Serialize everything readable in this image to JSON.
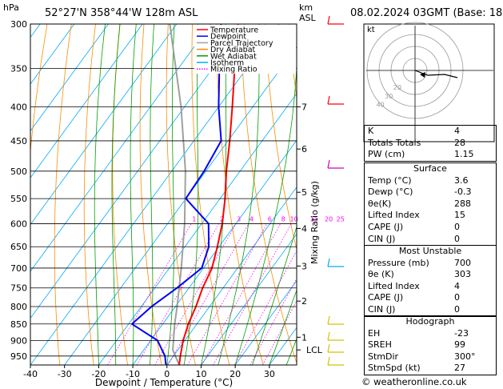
{
  "header": {
    "p_unit": "hPa",
    "location": "52°27'N  358°44'W  128m  ASL",
    "km_unit": "km",
    "asl": "ASL",
    "datetime": "08.02.2024  03GMT  (Base: 18)"
  },
  "chart_data": {
    "type": "skew-t",
    "xlabel": "Dewpoint / Temperature (°C)",
    "ylabel": "hPa",
    "mixing_label": "Mixing Ratio (g/kg)",
    "xlim": [
      -40,
      38
    ],
    "plim": [
      300,
      980
    ],
    "x_ticks": [
      -40,
      -30,
      -20,
      -10,
      0,
      10,
      20,
      30
    ],
    "p_ticks": [
      300,
      350,
      400,
      450,
      500,
      550,
      600,
      650,
      700,
      750,
      800,
      850,
      900,
      950
    ],
    "km_ticks": [
      {
        "label": "7",
        "p": 400
      },
      {
        "label": "6",
        "p": 463
      },
      {
        "label": "5",
        "p": 538
      },
      {
        "label": "4",
        "p": 610
      },
      {
        "label": "3",
        "p": 695
      },
      {
        "label": "2",
        "p": 785
      },
      {
        "label": "1",
        "p": 890
      },
      {
        "label": "LCL",
        "p": 930
      }
    ],
    "mixing_ratios": [
      "1",
      "2",
      "3",
      "4",
      "6",
      "8",
      "10",
      "15",
      "20",
      "25"
    ],
    "legend": [
      {
        "name": "Temperature",
        "color": "#ff0000"
      },
      {
        "name": "Dewpoint",
        "color": "#0000ff"
      },
      {
        "name": "Parcel Trajectory",
        "color": "#a0a0a0"
      },
      {
        "name": "Dry Adiabat",
        "color": "#ff8c00"
      },
      {
        "name": "Wet Adiabat",
        "color": "#00a000"
      },
      {
        "name": "Isotherm",
        "color": "#00aaff"
      },
      {
        "name": "Mixing Ratio",
        "color": "#ff00ff"
      }
    ],
    "temperature": [
      {
        "p": 980,
        "t": 3.6
      },
      {
        "p": 950,
        "t": 2.0
      },
      {
        "p": 900,
        "t": -0.5
      },
      {
        "p": 850,
        "t": -2.5
      },
      {
        "p": 800,
        "t": -4.0
      },
      {
        "p": 750,
        "t": -6.0
      },
      {
        "p": 700,
        "t": -7.5
      },
      {
        "p": 650,
        "t": -10.5
      },
      {
        "p": 600,
        "t": -14.0
      },
      {
        "p": 550,
        "t": -18.5
      },
      {
        "p": 500,
        "t": -24.0
      },
      {
        "p": 450,
        "t": -29.5
      },
      {
        "p": 400,
        "t": -36.0
      },
      {
        "p": 350,
        "t": -43.5
      },
      {
        "p": 300,
        "t": -52.0
      }
    ],
    "dewpoint": [
      {
        "p": 980,
        "t": -0.3
      },
      {
        "p": 950,
        "t": -2.5
      },
      {
        "p": 900,
        "t": -8.0
      },
      {
        "p": 850,
        "t": -19.0
      },
      {
        "p": 800,
        "t": -17.0
      },
      {
        "p": 750,
        "t": -13.5
      },
      {
        "p": 700,
        "t": -10.5
      },
      {
        "p": 650,
        "t": -13.0
      },
      {
        "p": 600,
        "t": -18.0
      },
      {
        "p": 550,
        "t": -30.0
      },
      {
        "p": 500,
        "t": -30.5
      },
      {
        "p": 450,
        "t": -32.0
      },
      {
        "p": 400,
        "t": -40.0
      },
      {
        "p": 350,
        "t": -48.0
      },
      {
        "p": 300,
        "t": -57.0
      }
    ],
    "parcel": [
      {
        "p": 980,
        "t": 3.6
      },
      {
        "p": 930,
        "t": -1.5
      },
      {
        "p": 850,
        "t": -6.5
      },
      {
        "p": 800,
        "t": -9.5
      },
      {
        "p": 700,
        "t": -16.5
      },
      {
        "p": 600,
        "t": -25.0
      },
      {
        "p": 500,
        "t": -36.0
      },
      {
        "p": 400,
        "t": -51.0
      },
      {
        "p": 300,
        "t": -72.0
      }
    ]
  },
  "hodograph": {
    "label": "kt",
    "ring_labels": [
      "20",
      "30",
      "40"
    ]
  },
  "indices": [
    {
      "label": "K",
      "value": "4"
    },
    {
      "label": "Totals Totals",
      "value": "28"
    },
    {
      "label": "PW (cm)",
      "value": "1.15"
    }
  ],
  "surface": {
    "title": "Surface",
    "rows": [
      {
        "label": "Temp (°C)",
        "value": "3.6"
      },
      {
        "label": "Dewp (°C)",
        "value": "-0.3"
      },
      {
        "label": "θe(K)",
        "value": "288"
      },
      {
        "label": "Lifted Index",
        "value": "15"
      },
      {
        "label": "CAPE (J)",
        "value": "0"
      },
      {
        "label": "CIN (J)",
        "value": "0"
      }
    ]
  },
  "most_unstable": {
    "title": "Most Unstable",
    "rows": [
      {
        "label": "Pressure (mb)",
        "value": "700"
      },
      {
        "label": "θe (K)",
        "value": "303"
      },
      {
        "label": "Lifted Index",
        "value": "4"
      },
      {
        "label": "CAPE (J)",
        "value": "0"
      },
      {
        "label": "CIN (J)",
        "value": "0"
      }
    ]
  },
  "hodo_table": {
    "title": "Hodograph",
    "rows": [
      {
        "label": "EH",
        "value": "-23"
      },
      {
        "label": "SREH",
        "value": "99"
      },
      {
        "label": "StmDir",
        "value": "300°"
      },
      {
        "label": "StmSpd (kt)",
        "value": "27"
      }
    ]
  },
  "footer": "© weatheronline.co.uk"
}
